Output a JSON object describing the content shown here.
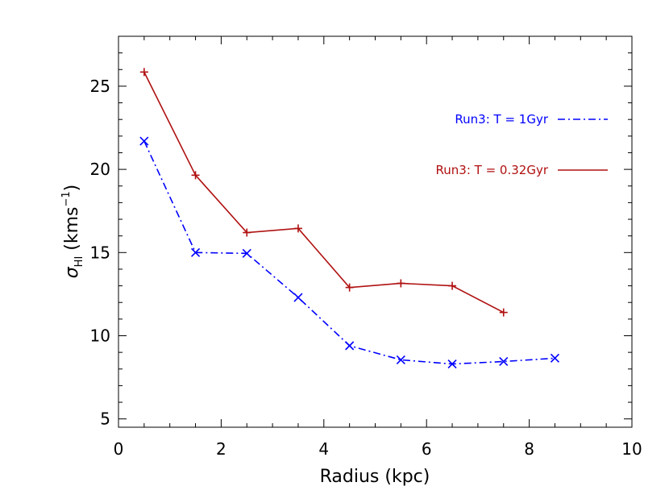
{
  "chart_data": {
    "type": "line",
    "xlabel": "Radius (kpc)",
    "ylabel": {
      "main": "σ",
      "sub": "HI",
      "units_pre": " (kms",
      "units_sup": "−1",
      "units_post": ")"
    },
    "xlim": [
      0,
      10
    ],
    "ylim": [
      4.5,
      28
    ],
    "x_ticks": [
      0,
      2,
      4,
      6,
      8,
      10
    ],
    "x_tick_labels": [
      "0",
      "2",
      "4",
      "6",
      "8",
      "10"
    ],
    "y_ticks": [
      5,
      10,
      15,
      20,
      25
    ],
    "y_tick_labels": [
      "5",
      "10",
      "15",
      "20",
      "25"
    ],
    "grid": false,
    "legend_position": "top-right",
    "series": [
      {
        "name": "Run3: T = 1Gyr",
        "color": "#0000ff",
        "line_style": "dash-dot",
        "marker": "x",
        "x": [
          0.5,
          1.5,
          2.5,
          3.5,
          4.5,
          5.5,
          6.5,
          7.5,
          8.5
        ],
        "y": [
          21.7,
          15.0,
          14.95,
          12.3,
          9.4,
          8.55,
          8.3,
          8.45,
          8.65
        ]
      },
      {
        "name": "Run3: T = 0.32Gyr",
        "color": "#b01010",
        "line_style": "solid",
        "marker": "plus",
        "x": [
          0.5,
          1.5,
          2.5,
          3.5,
          4.5,
          5.5,
          6.5,
          7.5
        ],
        "y": [
          25.85,
          19.65,
          16.2,
          16.45,
          12.9,
          13.15,
          13.0,
          11.4
        ]
      }
    ]
  }
}
